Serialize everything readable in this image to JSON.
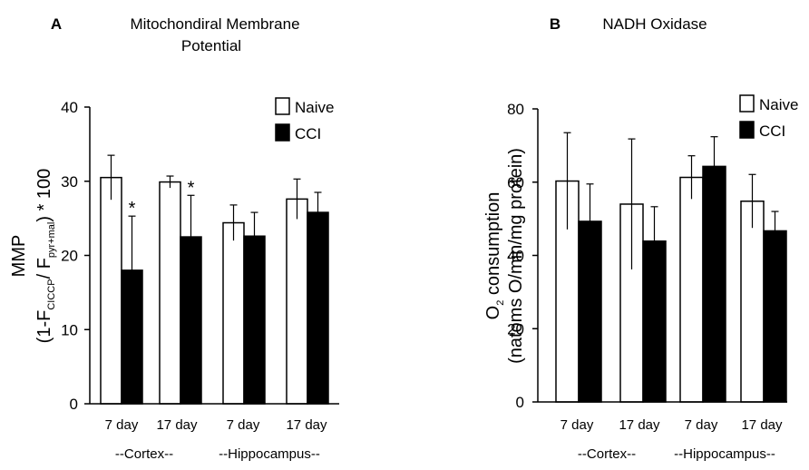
{
  "chart_data": [
    {
      "type": "bar",
      "panel_label": "A",
      "title_lines": [
        "Mitochondiral Membrane",
        "Potential"
      ],
      "ylabel_line1": "MMP",
      "ylabel_line2": {
        "prefix": "(1-F",
        "sub1": "CICCP",
        "sep": "/ F",
        "sub2": "pyr+mal",
        "suffix": ") * 100"
      },
      "ylim": [
        0,
        40
      ],
      "yticks": [
        0,
        10,
        20,
        30,
        40
      ],
      "categories": [
        "7 day",
        "17 day",
        "7 day",
        "17 day"
      ],
      "groups": [
        "--Cortex--",
        "--Hippocampus--"
      ],
      "series": [
        {
          "name": "Naive",
          "color": "#ffffff",
          "values": [
            30.5,
            29.9,
            24.4,
            27.6
          ],
          "errors": [
            3.0,
            0.8,
            2.4,
            2.7
          ]
        },
        {
          "name": "CCI",
          "color": "#000000",
          "values": [
            18.0,
            22.5,
            22.6,
            25.8
          ],
          "errors": [
            7.3,
            5.6,
            3.2,
            2.7
          ]
        }
      ],
      "annotations": [
        {
          "text": "*",
          "category_index": 0,
          "series_index": 1
        },
        {
          "text": "*",
          "category_index": 1,
          "series_index": 1
        }
      ],
      "legend": "top-right"
    },
    {
      "type": "bar",
      "panel_label": "B",
      "title_lines": [
        "NADH Oxidase"
      ],
      "ylabel_line1": {
        "prefix": "O",
        "sub": "2",
        "suffix": " consumption"
      },
      "ylabel_line2": "(natoms O/min/mg protein)",
      "ylim": [
        0,
        80
      ],
      "yticks": [
        0,
        20,
        40,
        60,
        80
      ],
      "categories": [
        "7 day",
        "17 day",
        "7 day",
        "17 day"
      ],
      "groups": [
        "--Cortex--",
        "--Hippocampus--"
      ],
      "series": [
        {
          "name": "Naive",
          "color": "#ffffff",
          "values": [
            60.3,
            54.0,
            61.3,
            54.8
          ],
          "errors": [
            13.2,
            17.8,
            5.9,
            7.3
          ]
        },
        {
          "name": "CCI",
          "color": "#000000",
          "values": [
            49.3,
            43.9,
            64.3,
            46.7
          ],
          "errors": [
            10.2,
            9.4,
            8.1,
            5.3
          ]
        }
      ],
      "annotations": [],
      "legend": "top-right"
    }
  ]
}
